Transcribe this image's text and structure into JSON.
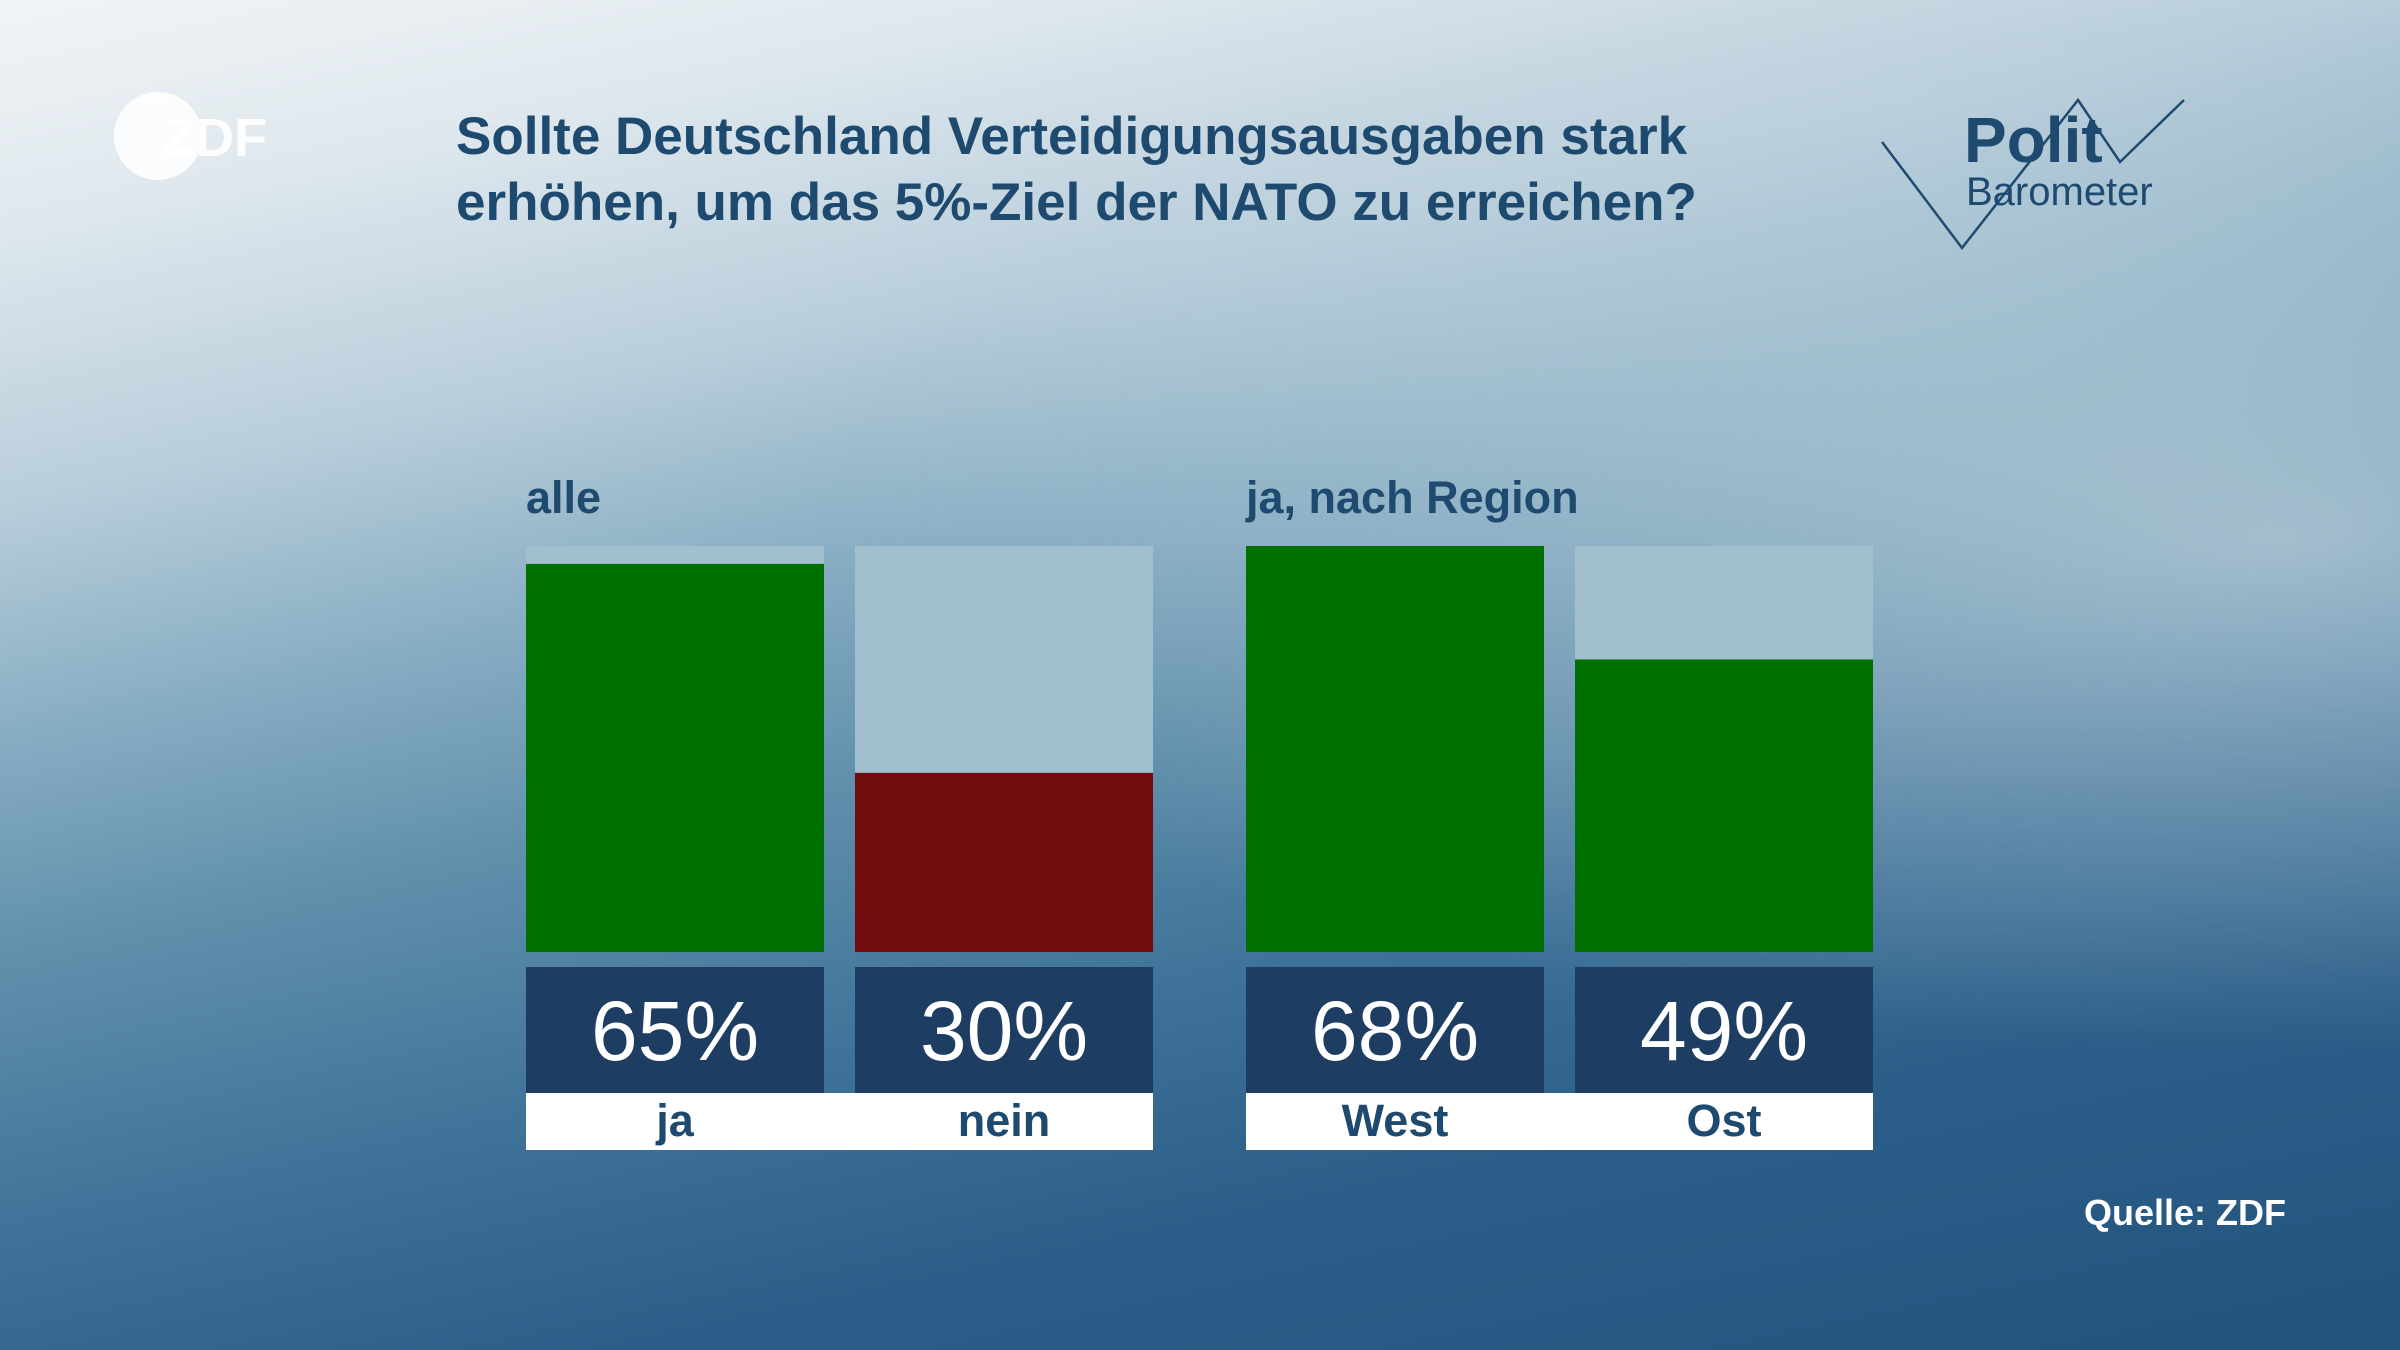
{
  "header": {
    "logo_text": "ZDF",
    "title": "Sollte Deutschland Verteidigungsausgaben stark erhöhen, um das 5%-Ziel der NATO zu erreichen?",
    "brand_line1": "Polit",
    "brand_line2": "Barometer"
  },
  "colors": {
    "yes": "#007100",
    "no": "#700c0c",
    "track": "#a2bfcf",
    "value_box": "#1d3d63",
    "label_box": "#ffffff",
    "text_dark": "#1d4a6e"
  },
  "chart_data": {
    "type": "bar",
    "unit": "%",
    "ylim": [
      0,
      68
    ],
    "groups": [
      {
        "label": "alle",
        "bars": [
          {
            "category": "ja",
            "value": 65,
            "value_label": "65%",
            "color": "yes"
          },
          {
            "category": "nein",
            "value": 30,
            "value_label": "30%",
            "color": "no"
          }
        ]
      },
      {
        "label": "ja, nach Region",
        "bars": [
          {
            "category": "West",
            "value": 68,
            "value_label": "68%",
            "color": "yes"
          },
          {
            "category": "Ost",
            "value": 49,
            "value_label": "49%",
            "color": "yes"
          }
        ]
      }
    ]
  },
  "footer": {
    "source": "Quelle: ZDF"
  }
}
